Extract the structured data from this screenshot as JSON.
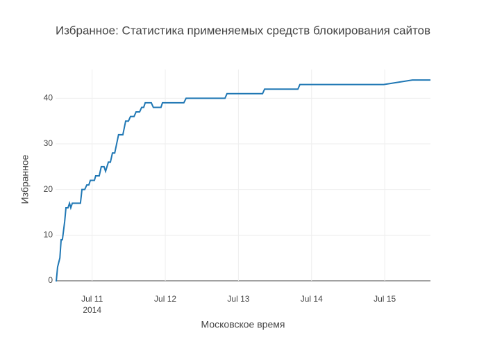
{
  "chart_data": {
    "type": "line",
    "title": "Избранное: Статистика применяемых средств блокирования сайтов",
    "x_label": "Московское время",
    "y_label": "Избранное",
    "x": [
      "2014-07-10T12:00",
      "2014-07-10T12:15",
      "2014-07-10T12:40",
      "2014-07-10T13:25",
      "2014-07-10T13:50",
      "2014-07-10T14:15",
      "2014-07-10T15:00",
      "2014-07-10T15:25",
      "2014-07-10T16:05",
      "2014-07-10T16:35",
      "2014-07-10T17:00",
      "2014-07-10T17:30",
      "2014-07-10T20:10",
      "2014-07-10T20:40",
      "2014-07-10T21:35",
      "2014-07-10T22:15",
      "2014-07-10T22:55",
      "2014-07-10T23:25",
      "2014-07-11T00:45",
      "2014-07-11T01:10",
      "2014-07-11T02:20",
      "2014-07-11T03:00",
      "2014-07-11T03:55",
      "2014-07-11T04:25",
      "2014-07-11T05:20",
      "2014-07-11T06:00",
      "2014-07-11T06:40",
      "2014-07-11T07:25",
      "2014-07-11T08:40",
      "2014-07-11T10:05",
      "2014-07-11T11:00",
      "2014-07-11T11:55",
      "2014-07-11T12:35",
      "2014-07-11T13:45",
      "2014-07-11T14:25",
      "2014-07-11T15:35",
      "2014-07-11T16:15",
      "2014-07-11T16:55",
      "2014-07-11T17:25",
      "2014-07-11T19:25",
      "2014-07-11T20:05",
      "2014-07-11T22:35",
      "2014-07-11T23:05",
      "2014-07-12T06:05",
      "2014-07-12T06:50",
      "2014-07-12T19:35",
      "2014-07-12T20:15",
      "2014-07-13T07:55",
      "2014-07-13T08:35",
      "2014-07-13T19:30",
      "2014-07-13T20:10",
      "2014-07-14T23:40",
      "2014-07-15T09:05",
      "2014-07-15T15:00"
    ],
    "series": [
      {
        "name": "Избранное",
        "color": "#1f77b4",
        "values": [
          0,
          0,
          3,
          5,
          9,
          9,
          13,
          16,
          16,
          17,
          16,
          17,
          17,
          20,
          20,
          21,
          21,
          22,
          22,
          23,
          23,
          25,
          25,
          24,
          26,
          26,
          28,
          28,
          32,
          32,
          35,
          35,
          36,
          36,
          37,
          37,
          38,
          38,
          39,
          39,
          38,
          38,
          39,
          39,
          40,
          40,
          41,
          41,
          42,
          42,
          43,
          43,
          44,
          44
        ]
      }
    ],
    "xlim": [
      "2014-07-10T12:00",
      "2014-07-15T15:00"
    ],
    "xticks": [
      {
        "value": "2014-07-11T00:00",
        "label": "Jul 11"
      },
      {
        "value": "2014-07-12T00:00",
        "label": "Jul 12"
      },
      {
        "value": "2014-07-13T00:00",
        "label": "Jul 13"
      },
      {
        "value": "2014-07-14T00:00",
        "label": "Jul 14"
      },
      {
        "value": "2014-07-15T00:00",
        "label": "Jul 15"
      }
    ],
    "xtick_year": "2014",
    "ylim": [
      0,
      46.3
    ],
    "yticks": [
      0,
      10,
      20,
      30,
      40
    ],
    "grid": true
  }
}
